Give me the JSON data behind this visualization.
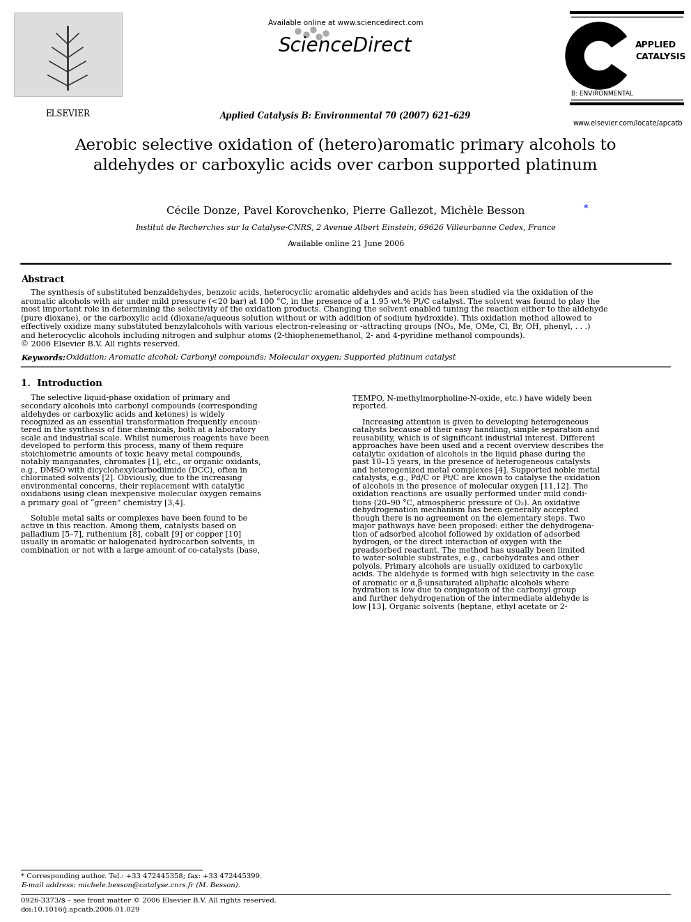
{
  "bg_color": "#ffffff",
  "header_available_online": "Available online at www.sciencedirect.com",
  "header_journal": "Applied Catalysis B: Environmental 70 (2007) 621–629",
  "header_website": "www.elsevier.com/locate/apcatb",
  "elsevier_label": "ELSEVIER",
  "sciencedirect_label": "ScienceDirect",
  "ac_line1": "APPLIED",
  "ac_line2": "CATALYSIS",
  "ac_line3": "B: ENVIRONMENTAL",
  "title": "Aerobic selective oxidation of (hetero)aromatic primary alcohols to\naldehydes or carboxylic acids over carbon supported platinum",
  "authors": "Cécile Donze, Pavel Korovchenko, Pierre Gallezot, Michèle Besson",
  "affiliation": "Institut de Recherches sur la Catalyse-CNRS, 2 Avenue Albert Einstein, 69626 Villeurbanne Cedex, France",
  "available_online_date": "Available online 21 June 2006",
  "abstract_title": "Abstract",
  "abs_lines": [
    "    The synthesis of substituted benzaldehydes, benzoic acids, heterocyclic aromatic aldehydes and acids has been studied via the oxidation of the",
    "aromatic alcohols with air under mild pressure (<20 bar) at 100 °C, in the presence of a 1.95 wt.% Pt/C catalyst. The solvent was found to play the",
    "most important role in determining the selectivity of the oxidation products. Changing the solvent enabled tuning the reaction either to the aldehyde",
    "(pure dioxane), or the carboxylic acid (dioxane/aqueous solution without or with addition of sodium hydroxide). This oxidation method allowed to",
    "effectively oxidize many substituted benzylalcohols with various electron-releasing or -attracting groups (NO₂, Me, OMe, Cl, Br, OH, phenyl, . . .)",
    "and heterocyclic alcohols including nitrogen and sulphur atoms (2-thiophenemethanol, 2- and 4-pyridine methanol compounds).",
    "© 2006 Elsevier B.V. All rights reserved."
  ],
  "keywords_label": "Keywords:",
  "keywords_text": "Oxidation; Aromatic alcohol; Carbonyl compounds; Molecular oxygen; Supported platinum catalyst",
  "sec1_title": "1.  Introduction",
  "left_col_lines": [
    "    The selective liquid-phase oxidation of primary and",
    "secondary alcohols into carbonyl compounds (corresponding",
    "aldehydes or carboxylic acids and ketones) is widely",
    "recognized as an essential transformation frequently encoun-",
    "tered in the synthesis of fine chemicals, both at a laboratory",
    "scale and industrial scale. Whilst numerous reagents have been",
    "developed to perform this process, many of them require",
    "stoichiometric amounts of toxic heavy metal compounds,",
    "notably manganates, chromates [1], etc., or organic oxidants,",
    "e.g., DMSO with dicyclohexylcarbodiimide (DCC), often in",
    "chlorinated solvents [2]. Obviously, due to the increasing",
    "environmental concerns, their replacement with catalytic",
    "oxidations using clean inexpensive molecular oxygen remains",
    "a primary goal of “green” chemistry [3,4].",
    "",
    "    Soluble metal salts or complexes have been found to be",
    "active in this reaction. Among them, catalysts based on",
    "palladium [5–7], ruthenium [8], cobalt [9] or copper [10]",
    "usually in aromatic or halogenated hydrocarbon solvents, in",
    "combination or not with a large amount of co-catalysts (base,"
  ],
  "right_col_lines": [
    "TEMPO, N-methylmorpholine-N-oxide, etc.) have widely been",
    "reported.",
    "",
    "    Increasing attention is given to developing heterogeneous",
    "catalysts because of their easy handling, simple separation and",
    "reusability, which is of significant industrial interest. Different",
    "approaches have been used and a recent overview describes the",
    "catalytic oxidation of alcohols in the liquid phase during the",
    "past 10–15 years, in the presence of heterogeneous catalysts",
    "and heterogenized metal complexes [4]. Supported noble metal",
    "catalysts, e.g., Pd/C or Pt/C are known to catalyse the oxidation",
    "of alcohols in the presence of molecular oxygen [11,12]. The",
    "oxidation reactions are usually performed under mild condi-",
    "tions (20–90 °C, atmospheric pressure of O₂). An oxidative",
    "dehydrogenation mechanism has been generally accepted",
    "though there is no agreement on the elementary steps. Two",
    "major pathways have been proposed: either the dehydrogena-",
    "tion of adsorbed alcohol followed by oxidation of adsorbed",
    "hydrogen, or the direct interaction of oxygen with the",
    "preadsorbed reactant. The method has usually been limited",
    "to water-soluble substrates, e.g., carbohydrates and other",
    "polyols. Primary alcohols are usually oxidized to carboxylic",
    "acids. The aldehyde is formed with high selectivity in the case",
    "of aromatic or α,β-unsaturated aliphatic alcohols where",
    "hydration is low due to conjugation of the carbonyl group",
    "and further dehydrogenation of the intermediate aldehyde is",
    "low [13]. Organic solvents (heptane, ethyl acetate or 2-"
  ],
  "footnote1": "* Corresponding author. Tel.: +33 472445358; fax: +33 472445399.",
  "footnote2": "E-mail address: michele.besson@catalyse.cnrs.fr (M. Besson).",
  "footnote3": "0926-3373/$ – see front matter © 2006 Elsevier B.V. All rights reserved.",
  "footnote4": "doi:10.1016/j.apcatb.2006.01.029"
}
